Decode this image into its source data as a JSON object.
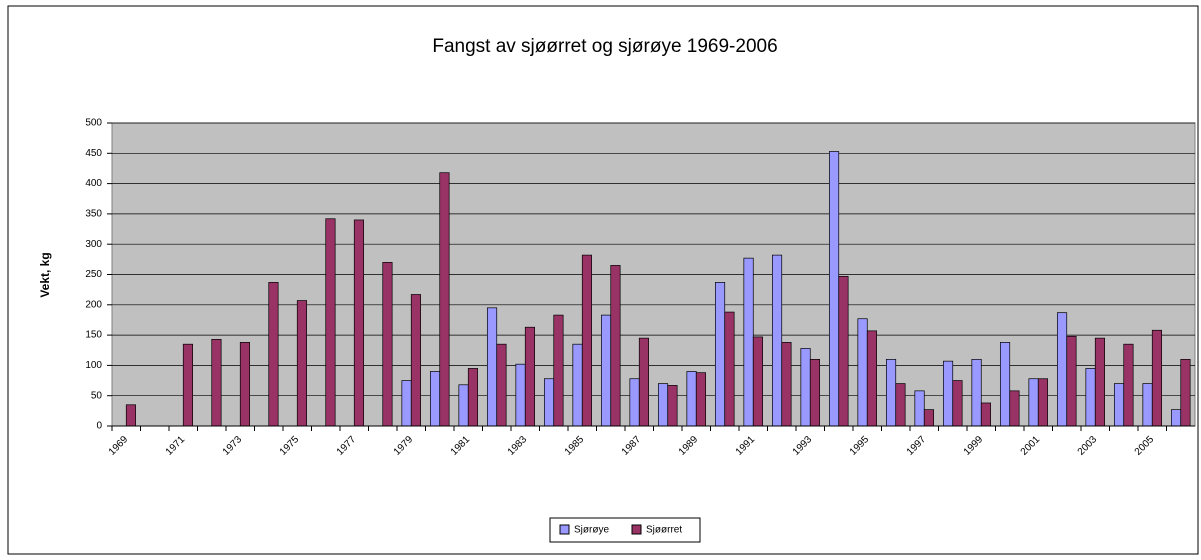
{
  "chart_data": {
    "type": "bar",
    "title": "Fangst av sjøørret og sjørøye 1969-2006",
    "y_label": "Vekt, kg",
    "categories": [
      "1969",
      null,
      "1971",
      null,
      "1973",
      null,
      "1975",
      null,
      "1977",
      null,
      "1979",
      null,
      "1981",
      null,
      "1983",
      null,
      "1985",
      null,
      "1987",
      null,
      "1989",
      null,
      "1991",
      null,
      "1993",
      null,
      "1995",
      null,
      "1997",
      null,
      "1999",
      null,
      "2001",
      null,
      "2003",
      null,
      "2005",
      null
    ],
    "series": [
      {
        "name": "Sjørøye",
        "color": "#9999ff",
        "values": [
          null,
          null,
          null,
          null,
          null,
          null,
          null,
          null,
          null,
          null,
          75,
          90,
          68,
          195,
          102,
          78,
          135,
          183,
          78,
          70,
          90,
          237,
          277,
          282,
          128,
          453,
          177,
          110,
          58,
          107,
          110,
          138,
          78,
          187,
          95,
          70,
          70,
          27
        ]
      },
      {
        "name": "Sjøørret",
        "color": "#993366",
        "values": [
          35,
          null,
          135,
          143,
          138,
          237,
          207,
          342,
          340,
          270,
          217,
          418,
          95,
          135,
          163,
          183,
          282,
          265,
          145,
          67,
          88,
          188,
          147,
          138,
          110,
          247,
          157,
          70,
          27,
          75,
          38,
          58,
          78,
          148,
          145,
          135,
          158,
          110
        ]
      }
    ],
    "ylim": [
      0,
      500
    ],
    "yticks": [
      0,
      50,
      100,
      150,
      200,
      250,
      300,
      350,
      400,
      450,
      500
    ],
    "grid": true,
    "legend": "bottom"
  }
}
